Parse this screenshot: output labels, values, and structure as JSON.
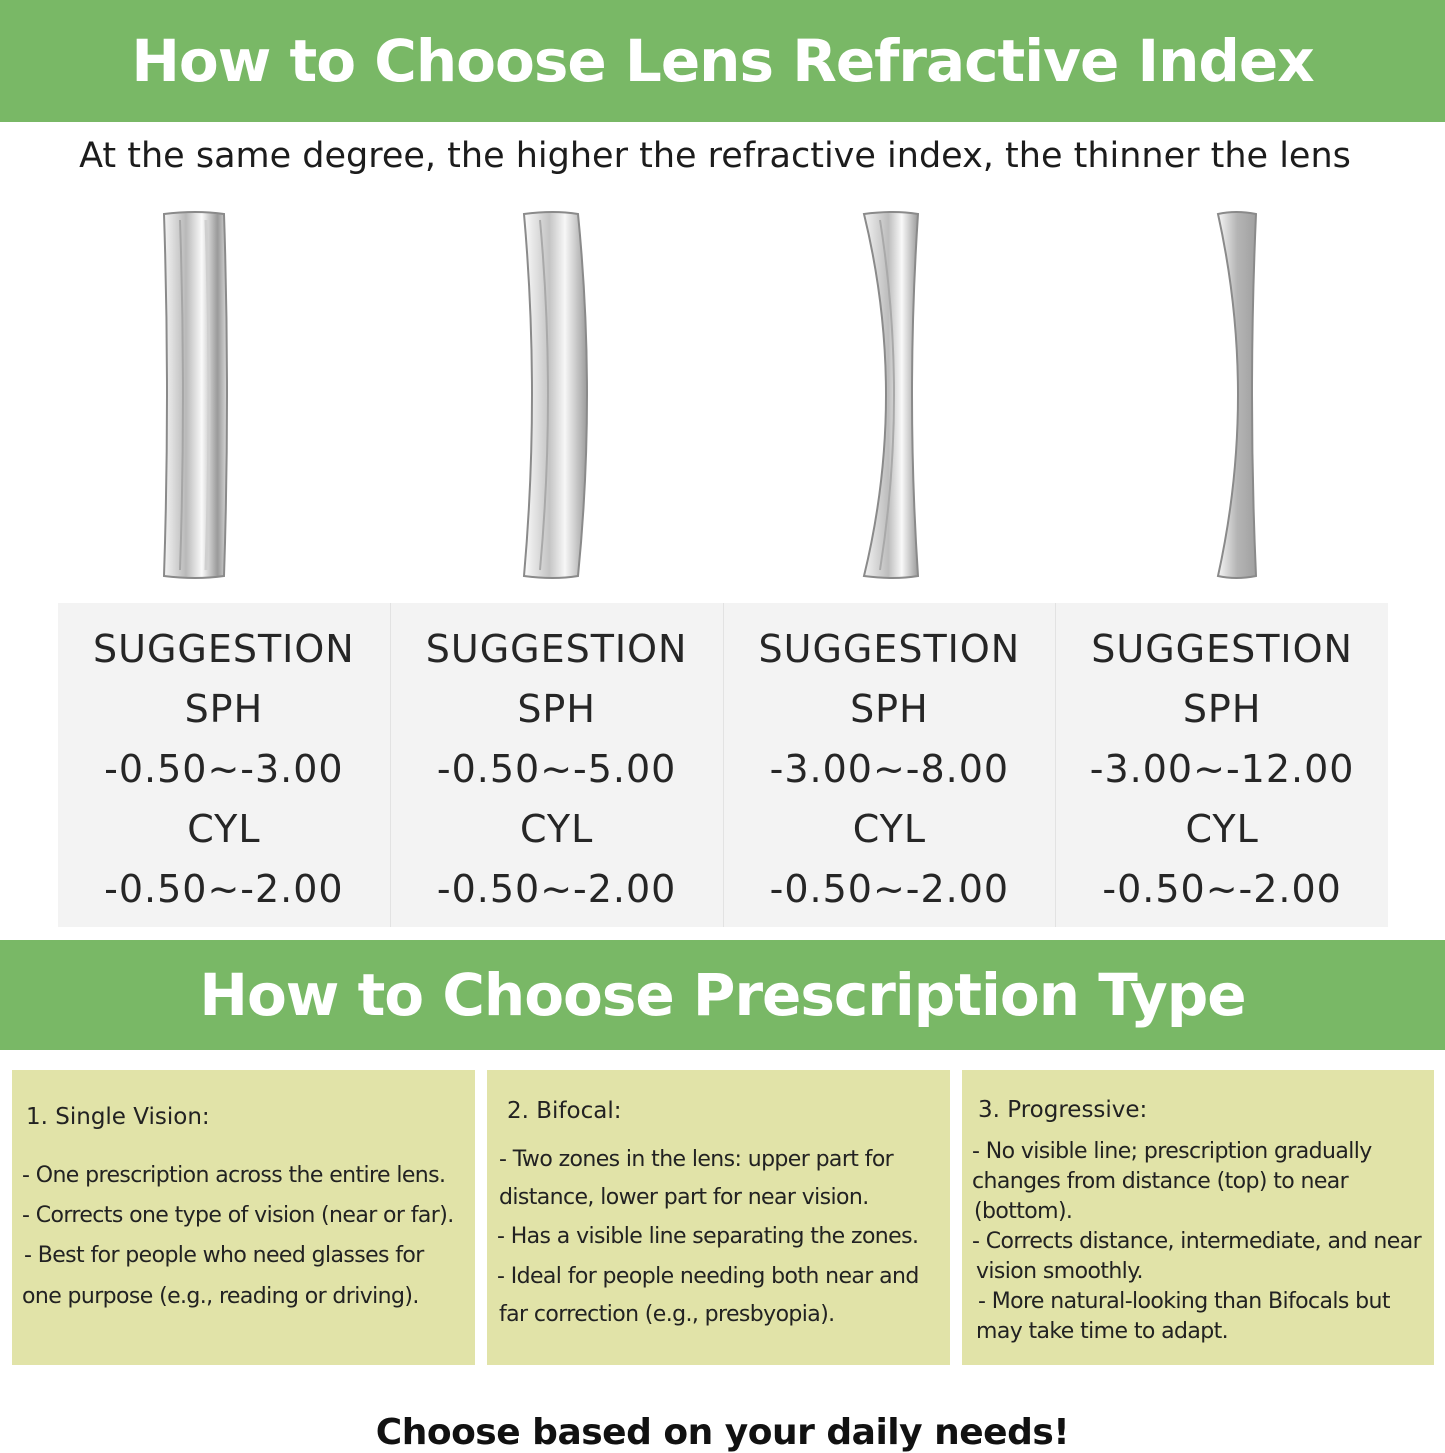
{
  "refractive": {
    "title": "How to Choose Lens Refractive Index",
    "subtitle": "At the same degree, the higher the refractive index, the thinner the lens",
    "lens_images": [
      "lens-thickest-icon",
      "lens-thick-icon",
      "lens-thin-icon",
      "lens-thinnest-icon"
    ],
    "suggestions": [
      {
        "heading": "SUGGESTION",
        "sph_label": "SPH",
        "sph": "-0.50~-3.00",
        "cyl_label": "CYL",
        "cyl": "-0.50~-2.00"
      },
      {
        "heading": "SUGGESTION",
        "sph_label": "SPH",
        "sph": "-0.50~-5.00",
        "cyl_label": "CYL",
        "cyl": "-0.50~-2.00"
      },
      {
        "heading": "SUGGESTION",
        "sph_label": "SPH",
        "sph": "-3.00~-8.00",
        "cyl_label": "CYL",
        "cyl": "-0.50~-2.00"
      },
      {
        "heading": "SUGGESTION",
        "sph_label": "SPH",
        "sph": "-3.00~-12.00",
        "cyl_label": "CYL",
        "cyl": "-0.50~-2.00"
      }
    ]
  },
  "prescription": {
    "title": "How to Choose Prescription Type",
    "cards": [
      {
        "title": "1. Single Vision:",
        "lines": [
          "- One prescription across the entire lens.",
          "- Corrects one type of vision (near or far).",
          " - Best for people who need glasses for",
          " one purpose (e.g., reading or driving)."
        ]
      },
      {
        "title": "2. Bifocal:",
        "lines": [
          " - Two zones in the lens: upper part for",
          "distance, lower part for near vision.",
          "- Has a visible line separating the zones.",
          "- Ideal for people needing both near and",
          " far correction (e.g., presbyopia)."
        ]
      },
      {
        "title": "3. Progressive:",
        "lines": [
          "- No visible line; prescription gradually",
          "changes from distance (top) to near",
          " (bottom).",
          "- Corrects distance, intermediate, and near",
          " vision smoothly.",
          " - More natural-looking than Bifocals but",
          "may take time to adapt."
        ]
      }
    ],
    "footer": "Choose based on your daily needs!"
  },
  "colors": {
    "banner": "#79b866",
    "card": "#e1e3a8",
    "table": "#f3f3f3"
  }
}
